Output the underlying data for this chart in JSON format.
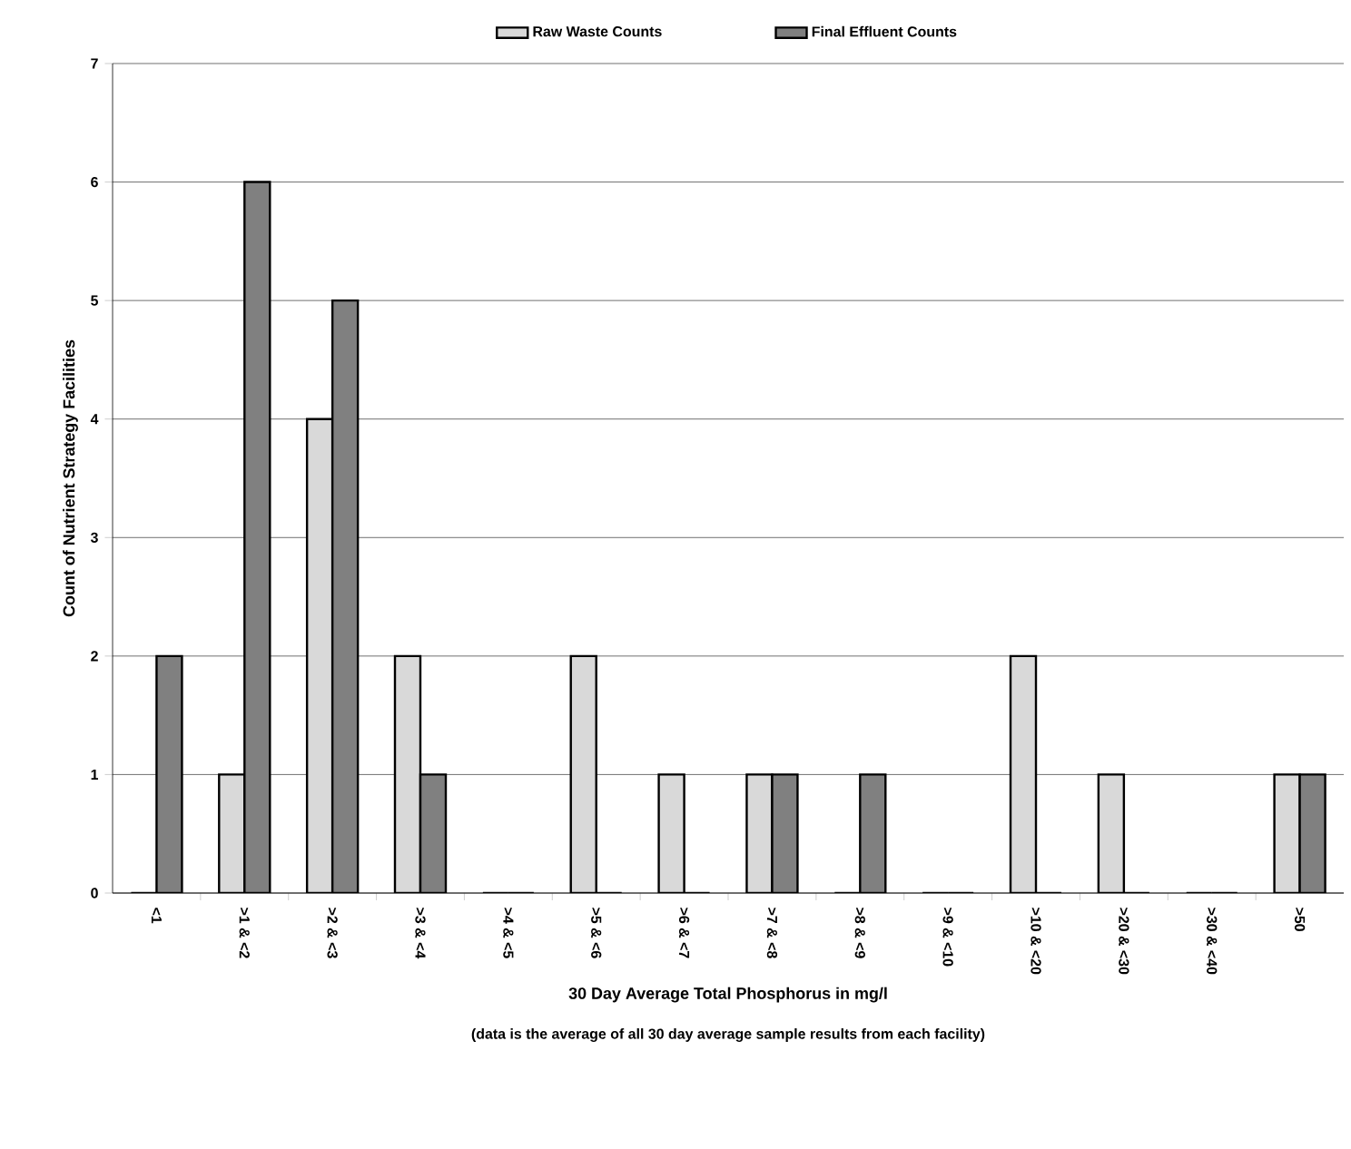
{
  "chart_data": {
    "type": "bar",
    "xlabel": "30 Day Average Total Phosphorus in mg/l",
    "ylabel": "Count of Nutrient Strategy Facilities",
    "annotations": [
      "(data is the average of all 30 day average sample results from each facility)"
    ],
    "categories": [
      "<1",
      ">1 & <2",
      ">2 & <3",
      ">3 & <4",
      ">4 & <5",
      ">5 & <6",
      ">6 & <7",
      ">7 & <8",
      ">8 & <9",
      ">9 & <10",
      ">10 & <20",
      ">20 & <30",
      ">30 & <40",
      ">50"
    ],
    "series": [
      {
        "name": "Raw Waste Counts",
        "color": "#d9d9d9",
        "values": [
          0,
          1,
          4,
          2,
          0,
          2,
          1,
          1,
          0,
          0,
          2,
          1,
          0,
          1
        ]
      },
      {
        "name": "Final Effluent Counts",
        "color": "#808080",
        "values": [
          2,
          6,
          5,
          1,
          0,
          0,
          0,
          1,
          1,
          0,
          0,
          0,
          0,
          1
        ]
      }
    ],
    "ylim": [
      0,
      7
    ],
    "yticks": [
      0,
      1,
      2,
      3,
      4,
      5,
      6,
      7
    ],
    "grid": "y",
    "legend": "top"
  }
}
